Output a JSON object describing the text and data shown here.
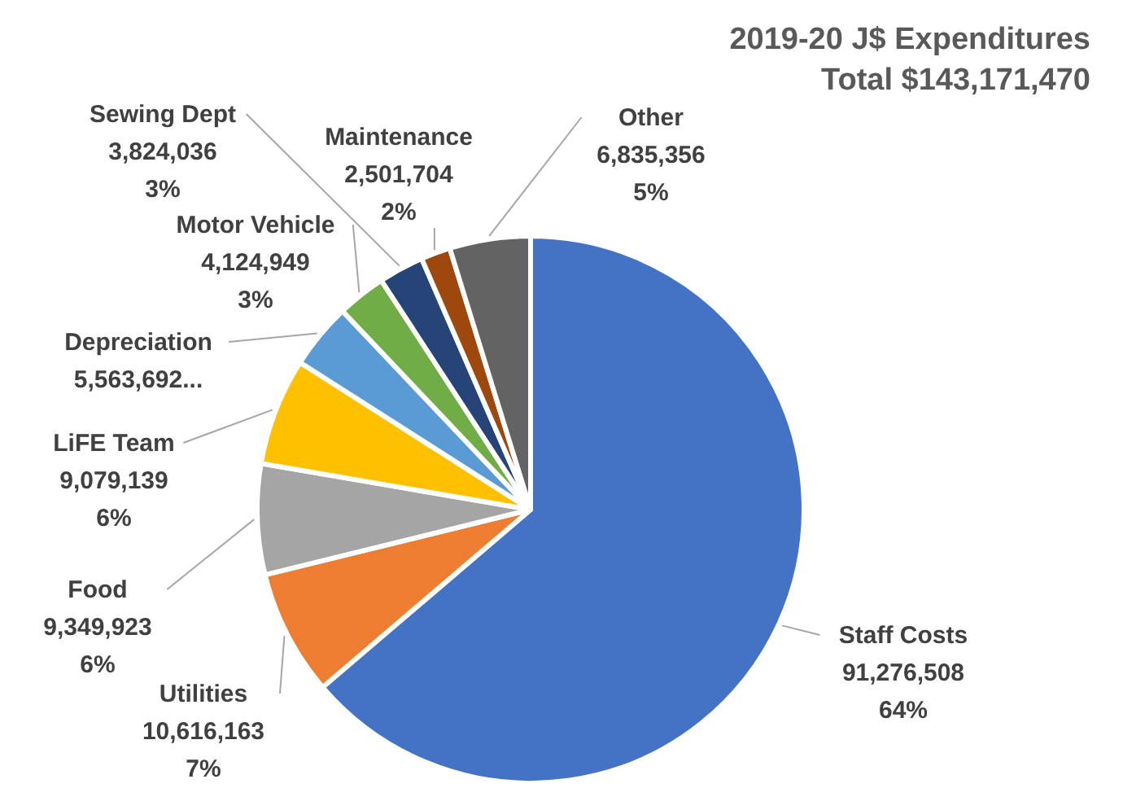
{
  "chart_data": {
    "type": "pie",
    "title": "2019-20 J$ Expenditures",
    "subtitle": "Total $143,171,470",
    "categories": [
      "Staff Costs",
      "Utilities",
      "Food",
      "LiFE Team",
      "Depreciation",
      "Motor Vehicle",
      "Sewing Dept",
      "Maintenance",
      "Other"
    ],
    "values": [
      91276508,
      10616163,
      9349923,
      9079139,
      5563692,
      4124949,
      3824036,
      2501704,
      6835356
    ],
    "colors": [
      "#4472c4",
      "#ed7d31",
      "#a5a5a5",
      "#ffc000",
      "#5b9bd5",
      "#70ad47",
      "#264478",
      "#9e480e",
      "#636363"
    ],
    "value_labels": [
      "91,276,508\n64%",
      "10,616,163\n7%",
      "9,349,923\n6%",
      "9,079,139\n6%",
      "5,563,692...",
      "4,124,949\n3%",
      "3,824,036\n3%",
      "2,501,704\n2%",
      "6,835,356\n5%"
    ],
    "legend": false
  }
}
